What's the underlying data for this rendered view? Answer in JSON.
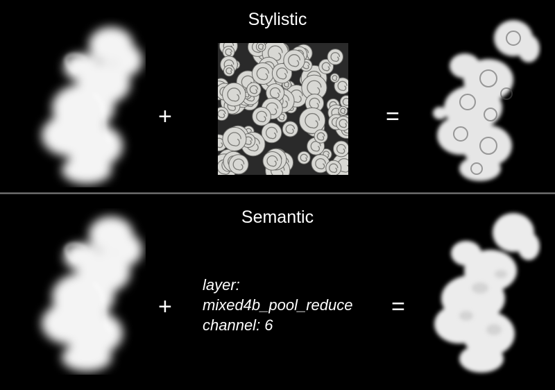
{
  "sections": {
    "stylistic": {
      "title": "Stylistic",
      "plus": "+",
      "equals": "="
    },
    "semantic": {
      "title": "Semantic",
      "plus": "+",
      "equals": "=",
      "layer_line1": "layer:",
      "layer_line2": "mixed4b_pool_reduce",
      "layer_line3": "channel: 6"
    }
  },
  "colors": {
    "background": "#000000",
    "smoke": "#f4f4f4",
    "texture": "#d8d8d4",
    "divider": "#8a8a8a"
  }
}
